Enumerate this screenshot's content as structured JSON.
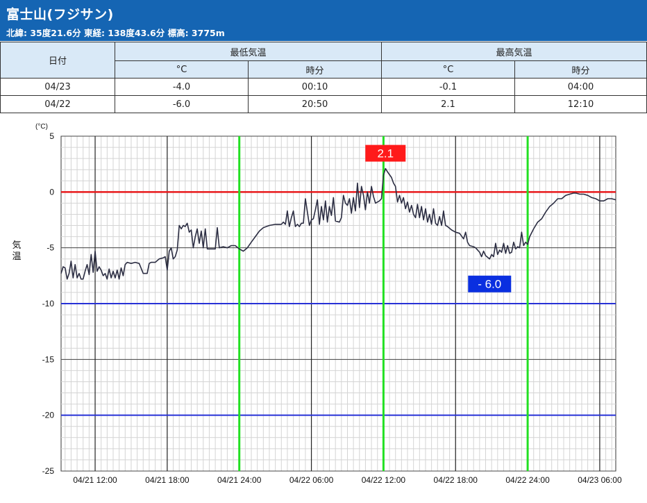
{
  "header": {
    "title": "富士山(フジサン)",
    "subtitle": "北緯: 35度21.6分 東経: 138度43.6分 標高: 3775m"
  },
  "table": {
    "date_header": "日付",
    "min_header": "最低気温",
    "max_header": "最高気温",
    "unit_c": "°C",
    "unit_time": "時分",
    "rows": [
      {
        "date": "04/23",
        "min": "-4.0",
        "min_time": "00:10",
        "max": "-0.1",
        "max_time": "04:00"
      },
      {
        "date": "04/22",
        "min": "-6.0",
        "min_time": "20:50",
        "max": "2.1",
        "max_time": "12:10"
      }
    ]
  },
  "colors": {
    "header_bg": "#1565b3",
    "table_header_bg": "#d9e9f7",
    "line": "#2b2d42",
    "zero_line": "#e8191b",
    "blue_lines": "#2731d6",
    "midnight_lines": "#22e022",
    "max_label_bg": "#ff1a1a",
    "min_label_bg": "#0a2fe0"
  },
  "chart_data": {
    "type": "line",
    "ylabel": "気温",
    "yunit": "(°C)",
    "ylim": [
      -25,
      5
    ],
    "yticks": [
      5,
      0,
      -5,
      -10,
      -15,
      -20,
      -25
    ],
    "reference_lines": {
      "red": [
        0
      ],
      "blue": [
        -10,
        -20
      ],
      "green_times": [
        "04/21 24:00",
        "04/22 12:00",
        "04/22 24:00"
      ]
    },
    "xlim": [
      "04/21 09:10",
      "04/23 07:20"
    ],
    "xticks": [
      "04/21 12:00",
      "04/21 18:00",
      "04/21 24:00",
      "04/22 06:00",
      "04/22 12:00",
      "04/22 18:00",
      "04/22 24:00",
      "04/23 06:00"
    ],
    "annotations": [
      {
        "text": "2.1",
        "time": "04/22 12:10",
        "value": 2.1,
        "kind": "max"
      },
      {
        "text": "- 6.0",
        "time": "04/22 20:50",
        "value": -6.0,
        "kind": "min"
      }
    ],
    "series": [
      {
        "points": [
          [
            "04/21 09:10",
            -7.3
          ],
          [
            "04/21 09:20",
            -6.7
          ],
          [
            "04/21 09:30",
            -6.8
          ],
          [
            "04/21 09:40",
            -7.8
          ],
          [
            "04/21 09:50",
            -7.3
          ],
          [
            "04/21 10:00",
            -6.2
          ],
          [
            "04/21 10:10",
            -7.7
          ],
          [
            "04/21 10:20",
            -6.5
          ],
          [
            "04/21 10:30",
            -7.7
          ],
          [
            "04/21 10:40",
            -7.3
          ],
          [
            "04/21 10:50",
            -7.8
          ],
          [
            "04/21 11:00",
            -7.8
          ],
          [
            "04/21 11:10",
            -7.1
          ],
          [
            "04/21 11:20",
            -6.5
          ],
          [
            "04/21 11:30",
            -7.4
          ],
          [
            "04/21 11:40",
            -5.6
          ],
          [
            "04/21 11:50",
            -7.2
          ],
          [
            "04/21 12:00",
            -5.3
          ],
          [
            "04/21 12:10",
            -7.1
          ],
          [
            "04/21 12:20",
            -6.7
          ],
          [
            "04/21 12:30",
            -7.0
          ],
          [
            "04/21 12:40",
            -7.5
          ],
          [
            "04/21 12:50",
            -7.3
          ],
          [
            "04/21 13:00",
            -7.8
          ],
          [
            "04/21 13:10",
            -6.9
          ],
          [
            "04/21 13:20",
            -7.7
          ],
          [
            "04/21 13:30",
            -7.1
          ],
          [
            "04/21 13:40",
            -7.7
          ],
          [
            "04/21 13:50",
            -7.0
          ],
          [
            "04/21 14:00",
            -7.8
          ],
          [
            "04/21 14:10",
            -6.8
          ],
          [
            "04/21 14:20",
            -7.5
          ],
          [
            "04/21 14:30",
            -6.5
          ],
          [
            "04/21 14:40",
            -6.3
          ],
          [
            "04/21 15:00",
            -6.4
          ],
          [
            "04/21 15:20",
            -6.3
          ],
          [
            "04/21 15:40",
            -6.4
          ],
          [
            "04/21 16:00",
            -7.3
          ],
          [
            "04/21 16:20",
            -7.3
          ],
          [
            "04/21 16:30",
            -6.4
          ],
          [
            "04/21 16:40",
            -6.3
          ],
          [
            "04/21 17:00",
            -6.3
          ],
          [
            "04/21 17:20",
            -6.0
          ],
          [
            "04/21 17:40",
            -5.9
          ],
          [
            "04/21 17:50",
            -5.8
          ],
          [
            "04/21 18:00",
            -7.0
          ],
          [
            "04/21 18:10",
            -5.3
          ],
          [
            "04/21 18:20",
            -5.0
          ],
          [
            "04/21 18:30",
            -6.0
          ],
          [
            "04/21 18:40",
            -5.8
          ],
          [
            "04/21 18:50",
            -5.2
          ],
          [
            "04/21 19:00",
            -3.0
          ],
          [
            "04/21 19:10",
            -3.3
          ],
          [
            "04/21 19:20",
            -3.0
          ],
          [
            "04/21 19:30",
            -3.1
          ],
          [
            "04/21 19:40",
            -2.8
          ],
          [
            "04/21 19:50",
            -3.6
          ],
          [
            "04/21 20:00",
            -3.4
          ],
          [
            "04/21 20:10",
            -5.0
          ],
          [
            "04/21 20:20",
            -4.0
          ],
          [
            "04/21 20:30",
            -3.3
          ],
          [
            "04/21 20:40",
            -4.6
          ],
          [
            "04/21 20:50",
            -3.5
          ],
          [
            "04/21 21:00",
            -5.0
          ],
          [
            "04/21 21:10",
            -3.3
          ],
          [
            "04/21 21:20",
            -5.1
          ],
          [
            "04/21 21:40",
            -5.1
          ],
          [
            "04/21 22:00",
            -5.1
          ],
          [
            "04/21 22:10",
            -3.2
          ],
          [
            "04/21 22:20",
            -5.0
          ],
          [
            "04/21 22:40",
            -4.9
          ],
          [
            "04/21 23:00",
            -5.0
          ],
          [
            "04/21 23:20",
            -4.8
          ],
          [
            "04/21 23:40",
            -4.8
          ],
          [
            "04/22 00:00",
            -5.1
          ],
          [
            "04/22 00:20",
            -5.3
          ],
          [
            "04/22 00:40",
            -5.0
          ],
          [
            "04/22 01:00",
            -4.5
          ],
          [
            "04/22 01:20",
            -4.0
          ],
          [
            "04/22 01:40",
            -3.5
          ],
          [
            "04/22 02:00",
            -3.2
          ],
          [
            "04/22 02:30",
            -3.0
          ],
          [
            "04/22 03:00",
            -2.9
          ],
          [
            "04/22 03:30",
            -2.9
          ],
          [
            "04/22 03:40",
            -2.7
          ],
          [
            "04/22 03:50",
            -2.9
          ],
          [
            "04/22 04:00",
            -1.7
          ],
          [
            "04/22 04:10",
            -3.1
          ],
          [
            "04/22 04:20",
            -2.3
          ],
          [
            "04/22 04:30",
            -1.7
          ],
          [
            "04/22 04:40",
            -3.1
          ],
          [
            "04/22 04:50",
            -2.9
          ],
          [
            "04/22 05:00",
            -3.1
          ],
          [
            "04/22 05:10",
            -2.8
          ],
          [
            "04/22 05:20",
            -2.8
          ],
          [
            "04/22 05:30",
            -0.6
          ],
          [
            "04/22 05:40",
            -1.8
          ],
          [
            "04/22 05:50",
            -3.0
          ],
          [
            "04/22 06:00",
            -2.5
          ],
          [
            "04/22 06:10",
            -2.4
          ],
          [
            "04/22 06:20",
            -1.6
          ],
          [
            "04/22 06:30",
            -0.7
          ],
          [
            "04/22 06:40",
            -2.9
          ],
          [
            "04/22 06:50",
            -1.3
          ],
          [
            "04/22 07:00",
            -2.5
          ],
          [
            "04/22 07:10",
            -0.8
          ],
          [
            "04/22 07:20",
            -2.7
          ],
          [
            "04/22 07:30",
            -1.3
          ],
          [
            "04/22 07:40",
            -2.1
          ],
          [
            "04/22 07:50",
            -0.5
          ],
          [
            "04/22 08:00",
            -2.6
          ],
          [
            "04/22 08:20",
            -2.7
          ],
          [
            "04/22 08:30",
            -2.3
          ],
          [
            "04/22 08:40",
            -0.3
          ],
          [
            "04/22 08:50",
            -1.0
          ],
          [
            "04/22 09:00",
            -1.2
          ],
          [
            "04/22 09:10",
            -0.6
          ],
          [
            "04/22 09:20",
            -1.9
          ],
          [
            "04/22 09:30",
            -0.5
          ],
          [
            "04/22 09:40",
            -1.7
          ],
          [
            "04/22 09:50",
            0.8
          ],
          [
            "04/22 10:00",
            -1.4
          ],
          [
            "04/22 10:10",
            0.5
          ],
          [
            "04/22 10:20",
            -0.3
          ],
          [
            "04/22 10:30",
            -1.6
          ],
          [
            "04/22 10:40",
            0.0
          ],
          [
            "04/22 10:50",
            -1.0
          ],
          [
            "04/22 11:00",
            0.5
          ],
          [
            "04/22 11:10",
            -0.4
          ],
          [
            "04/22 11:20",
            -1.0
          ],
          [
            "04/22 11:30",
            -0.9
          ],
          [
            "04/22 11:40",
            -0.8
          ],
          [
            "04/22 11:50",
            -0.6
          ],
          [
            "04/22 12:00",
            1.5
          ],
          [
            "04/22 12:10",
            2.1
          ],
          [
            "04/22 12:20",
            1.8
          ],
          [
            "04/22 12:40",
            1.3
          ],
          [
            "04/22 12:50",
            0.8
          ],
          [
            "04/22 13:00",
            0.5
          ],
          [
            "04/22 13:10",
            -0.9
          ],
          [
            "04/22 13:20",
            -0.3
          ],
          [
            "04/22 13:30",
            -1.0
          ],
          [
            "04/22 13:40",
            -0.5
          ],
          [
            "04/22 13:50",
            -1.5
          ],
          [
            "04/22 14:00",
            -0.9
          ],
          [
            "04/22 14:10",
            -1.8
          ],
          [
            "04/22 14:20",
            -1.2
          ],
          [
            "04/22 14:30",
            -2.0
          ],
          [
            "04/22 14:40",
            -2.3
          ],
          [
            "04/22 14:50",
            -1.1
          ],
          [
            "04/22 15:00",
            -2.3
          ],
          [
            "04/22 15:10",
            -1.3
          ],
          [
            "04/22 15:20",
            -2.5
          ],
          [
            "04/22 15:30",
            -1.5
          ],
          [
            "04/22 15:40",
            -2.7
          ],
          [
            "04/22 15:50",
            -2.0
          ],
          [
            "04/22 16:00",
            -2.9
          ],
          [
            "04/22 16:10",
            -1.5
          ],
          [
            "04/22 16:20",
            -2.8
          ],
          [
            "04/22 16:30",
            -3.0
          ],
          [
            "04/22 16:40",
            -2.2
          ],
          [
            "04/22 16:50",
            -3.0
          ],
          [
            "04/22 17:00",
            -1.7
          ],
          [
            "04/22 17:10",
            -3.0
          ],
          [
            "04/22 17:20",
            -3.1
          ],
          [
            "04/22 17:40",
            -3.4
          ],
          [
            "04/22 18:00",
            -3.6
          ],
          [
            "04/22 18:20",
            -3.7
          ],
          [
            "04/22 18:40",
            -4.2
          ],
          [
            "04/22 18:50",
            -3.6
          ],
          [
            "04/22 19:00",
            -4.5
          ],
          [
            "04/22 19:10",
            -4.8
          ],
          [
            "04/22 19:30",
            -4.9
          ],
          [
            "04/22 19:40",
            -5.0
          ],
          [
            "04/22 20:00",
            -5.4
          ],
          [
            "04/22 20:10",
            -5.8
          ],
          [
            "04/22 20:20",
            -5.3
          ],
          [
            "04/22 20:30",
            -5.7
          ],
          [
            "04/22 20:50",
            -6.0
          ],
          [
            "04/22 21:00",
            -5.6
          ],
          [
            "04/22 21:10",
            -5.8
          ],
          [
            "04/22 21:20",
            -4.6
          ],
          [
            "04/22 21:30",
            -5.6
          ],
          [
            "04/22 21:40",
            -5.2
          ],
          [
            "04/22 21:50",
            -5.4
          ],
          [
            "04/22 22:00",
            -4.6
          ],
          [
            "04/22 22:10",
            -5.5
          ],
          [
            "04/22 22:20",
            -4.8
          ],
          [
            "04/22 22:30",
            -5.5
          ],
          [
            "04/22 22:40",
            -5.4
          ],
          [
            "04/22 22:50",
            -4.5
          ],
          [
            "04/22 23:00",
            -5.1
          ],
          [
            "04/22 23:10",
            -4.9
          ],
          [
            "04/22 23:20",
            -5.0
          ],
          [
            "04/22 23:30",
            -3.6
          ],
          [
            "04/22 23:40",
            -4.8
          ],
          [
            "04/22 23:50",
            -4.5
          ],
          [
            "04/23 00:00",
            -4.7
          ],
          [
            "04/23 00:10",
            -4.0
          ],
          [
            "04/23 00:30",
            -3.3
          ],
          [
            "04/23 00:50",
            -2.7
          ],
          [
            "04/23 01:10",
            -2.4
          ],
          [
            "04/23 01:30",
            -1.8
          ],
          [
            "04/23 01:50",
            -1.3
          ],
          [
            "04/23 02:10",
            -1.0
          ],
          [
            "04/23 02:30",
            -0.6
          ],
          [
            "04/23 02:50",
            -0.6
          ],
          [
            "04/23 03:10",
            -0.3
          ],
          [
            "04/23 03:30",
            -0.2
          ],
          [
            "04/23 03:50",
            -0.1
          ],
          [
            "04/23 04:00",
            -0.1
          ],
          [
            "04/23 04:20",
            -0.2
          ],
          [
            "04/23 04:40",
            -0.2
          ],
          [
            "04/23 05:00",
            -0.3
          ],
          [
            "04/23 05:20",
            -0.5
          ],
          [
            "04/23 05:40",
            -0.6
          ],
          [
            "04/23 06:00",
            -0.8
          ],
          [
            "04/23 06:20",
            -0.8
          ],
          [
            "04/23 06:40",
            -0.6
          ],
          [
            "04/23 07:00",
            -0.6
          ],
          [
            "04/23 07:20",
            -0.7
          ]
        ]
      }
    ]
  }
}
